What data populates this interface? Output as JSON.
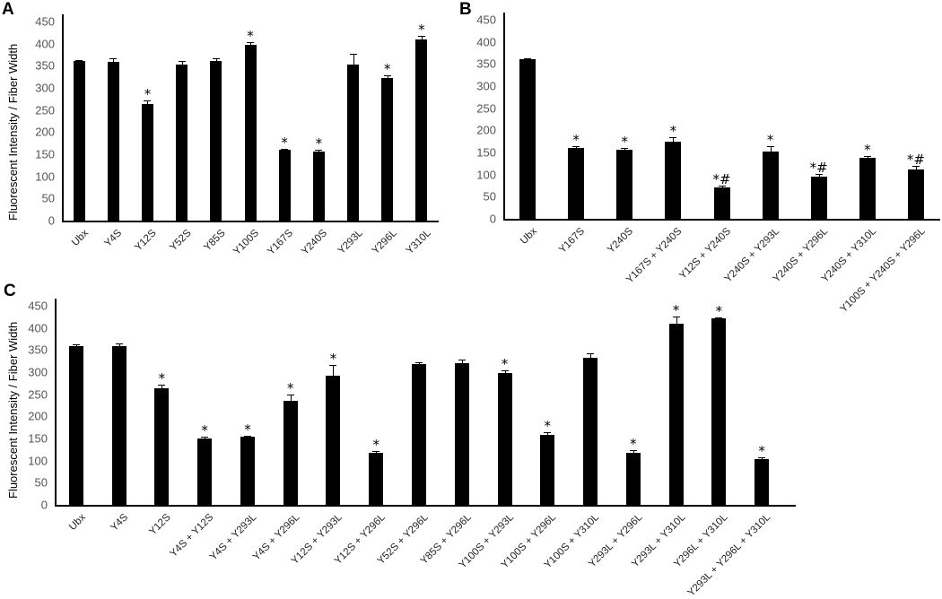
{
  "chart_data": [
    {
      "panel": "A",
      "type": "bar",
      "title": "",
      "xlabel": "",
      "ylabel": "Fluorescent Intensity / Fiber Width",
      "ylim": [
        0,
        450
      ],
      "yticks": [
        0,
        50,
        100,
        150,
        200,
        250,
        300,
        350,
        400,
        450
      ],
      "grid": false,
      "legend": null,
      "categories": [
        "Ubx",
        "Y4S",
        "Y12S",
        "Y52S",
        "Y85S",
        "Y100S",
        "Y167S",
        "Y240S",
        "Y293L",
        "Y296L",
        "Y310L"
      ],
      "values": [
        360,
        358,
        264,
        352,
        360,
        398,
        160,
        157,
        352,
        323,
        410
      ],
      "errors": [
        3,
        8,
        8,
        8,
        6,
        5,
        3,
        3,
        25,
        5,
        8
      ],
      "significance": [
        "",
        "",
        "*",
        "",
        "",
        "*",
        "*",
        "*",
        "",
        "*",
        "*"
      ]
    },
    {
      "panel": "B",
      "type": "bar",
      "title": "",
      "xlabel": "",
      "ylabel": "Fluorescent Intensity / Fiber Width",
      "ylim": [
        0,
        450
      ],
      "yticks": [
        0,
        50,
        100,
        150,
        200,
        250,
        300,
        350,
        400,
        450
      ],
      "grid": false,
      "legend": null,
      "categories": [
        "Ubx",
        "Y167S",
        "Y240S",
        "Y167S + Y240S",
        "Y12S + Y240S",
        "Y240S + Y293L",
        "Y240S + Y296L",
        "Y240S + Y310L",
        "Y100S + Y240S + Y296L"
      ],
      "values": [
        360,
        161,
        157,
        175,
        70,
        153,
        95,
        137,
        111
      ],
      "errors": [
        3,
        3,
        3,
        9,
        5,
        11,
        7,
        5,
        8
      ],
      "significance": [
        "",
        "*",
        "*",
        "*",
        "*#",
        "*",
        "*#",
        "*",
        "*#"
      ]
    },
    {
      "panel": "C",
      "type": "bar",
      "title": "",
      "xlabel": "",
      "ylabel": "Fluorescent Intensity / Fiber Width",
      "ylim": [
        0,
        450
      ],
      "yticks": [
        0,
        50,
        100,
        150,
        200,
        250,
        300,
        350,
        400,
        450
      ],
      "grid": false,
      "legend": null,
      "categories": [
        "Ubx",
        "Y4S",
        "Y12S",
        "Y4S + Y12S",
        "Y4S + Y293L",
        "Y4S + Y296L",
        "Y12S + Y293L",
        "Y12S + Y296L",
        "Y52S + Y296L",
        "Y85S + Y296L",
        "Y100S + Y293L",
        "Y100S + Y296L",
        "Y100S + Y310L",
        "Y293L + Y296L",
        "Y293L + Y310L",
        "Y296L + Y310L",
        "Y293L + Y296L + Y310L"
      ],
      "values": [
        359,
        358,
        264,
        150,
        154,
        236,
        292,
        118,
        318,
        320,
        298,
        158,
        333,
        118,
        410,
        421,
        103
      ],
      "errors": [
        3,
        7,
        7,
        5,
        3,
        14,
        25,
        3,
        5,
        9,
        7,
        7,
        9,
        5,
        15,
        2,
        5
      ],
      "significance": [
        "",
        "",
        "*",
        "*",
        "*",
        "*",
        "*",
        "*",
        "",
        "",
        "*",
        "*",
        "",
        "*",
        "*",
        "*",
        "*"
      ]
    }
  ],
  "panels": {
    "A": {
      "letter": "A",
      "ylabel": "Fluorescent Intensity / Fiber Width"
    },
    "B": {
      "letter": "B",
      "ylabel": "Fluorescent Intensity / Fiber Width"
    },
    "C": {
      "letter": "C",
      "ylabel": "Fluorescent Intensity / Fiber Width"
    }
  }
}
